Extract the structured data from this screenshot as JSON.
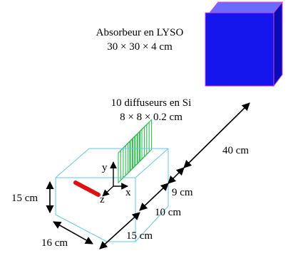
{
  "absorber": {
    "title": "Absorbeur en LYSO",
    "dims": "30 × 30 × 4 cm",
    "color": "#1515ee"
  },
  "scatterers": {
    "title": "10 diffuseurs en Si",
    "dims": "8 × 8 × 0.2 cm",
    "count": 10,
    "color": "#2fbf4f"
  },
  "source_box": {
    "height_label": "15 cm",
    "width_label": "16 cm",
    "depth_label": "15 cm",
    "color": "#5ec8ee"
  },
  "axes": {
    "x": "x",
    "y": "y",
    "z": "z"
  },
  "source": {
    "color": "#e01010"
  },
  "distances": {
    "absorber": "40 cm",
    "scatterers": "9 cm",
    "box": "10 cm"
  }
}
